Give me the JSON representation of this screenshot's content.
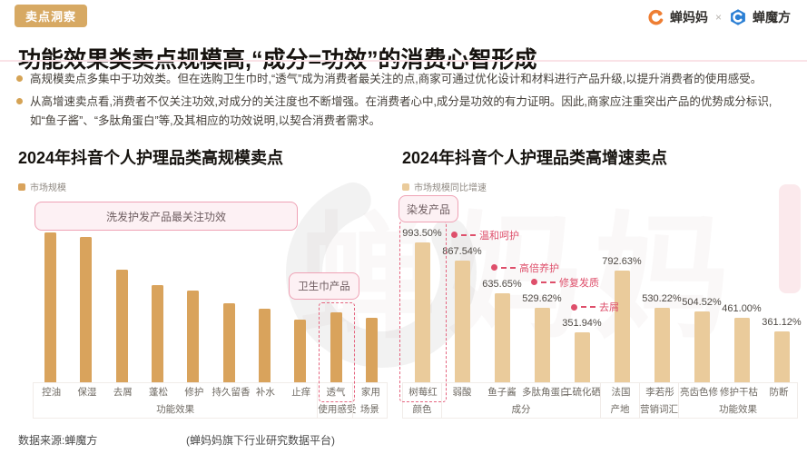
{
  "page": {
    "badge": "卖点洞察",
    "title": "功能效果类卖点规模高,“成分=功效”的消费心智形成",
    "brand": {
      "left_name": "蝉妈妈",
      "separator": "×",
      "right_name": "蝉魔方"
    },
    "bullets": [
      "高规模卖点多集中于功效类。但在选购卫生巾时,“透气”成为消费者最关注的点,商家可通过优化设计和材料进行产品升级,以提升消费者的使用感受。",
      "从高增速卖点看,消费者不仅关注功效,对成分的关注度也不断增强。在消费者心中,成分是功效的有力证明。因此,商家应注重突出产品的优势成分标识,如“鱼子酱”、“多肽角蛋白”等,及其相应的功效说明,以契合消费者需求。"
    ],
    "watermark": "蝉妈妈",
    "footer": {
      "source": "数据来源:蝉魔方",
      "platform": "(蝉妈妈旗下行业研究数据平台)"
    },
    "colors": {
      "badge_bg": "#D7A963",
      "left_bar": "#D9A35C",
      "right_bar": "#EACB9B",
      "pink_dashed": "#E5647F",
      "annotation_red": "#DE4F6B",
      "callout_bg": "#FDF1F4",
      "callout_border": "#EFA2B5",
      "divider_pink": "#FAE3E7",
      "brand_orange": "#EE7E33",
      "brand_blue": "#2B7FD4"
    }
  },
  "chart_data": [
    {
      "type": "bar",
      "title": "2024年抖音个人护理品类高规模卖点",
      "legend_label": "市场规模",
      "bar_color": "#D9A35C",
      "value_note": "no numeric axis shown in source; values are relative heights (max bar = 100)",
      "categories": [
        "控油",
        "保湿",
        "去屑",
        "蓬松",
        "修护",
        "持久留香",
        "补水",
        "止痒",
        "透气",
        "家用"
      ],
      "values": [
        100,
        97,
        75,
        65,
        61,
        53,
        49,
        42,
        47,
        43
      ],
      "groups": [
        {
          "label": "功能效果",
          "span": 8
        },
        {
          "label": "使用感受",
          "span": 1
        },
        {
          "label": "场景",
          "span": 1
        }
      ],
      "highlighted_bar": "透气",
      "callouts": [
        {
          "text": "洗发护发产品最关注功效"
        },
        {
          "text": "卫生巾产品"
        }
      ],
      "grid": false,
      "legend_position": "top-left"
    },
    {
      "type": "bar",
      "title": "2024年抖音个人护理品类高增速卖点",
      "legend_label": "市场规模同比增速",
      "bar_color": "#EACB9B",
      "categories": [
        "树莓红",
        "弱酸",
        "鱼子酱",
        "多肽角蛋白",
        "二硫化硒",
        "法国",
        "李若彤",
        "亮齿色修",
        "修护干枯",
        "防断"
      ],
      "values": [
        993.5,
        867.54,
        635.65,
        529.62,
        351.94,
        792.63,
        530.22,
        504.52,
        461.0,
        361.12
      ],
      "value_labels": [
        "993.50%",
        "867.54%",
        "635.65%",
        "529.62%",
        "351.94%",
        "792.63%",
        "530.22%",
        "504.52%",
        "461.00%",
        "361.12%"
      ],
      "groups": [
        {
          "label": "颜色",
          "span": 1
        },
        {
          "label": "成分",
          "span": 4
        },
        {
          "label": "产地",
          "span": 1
        },
        {
          "label": "营销词汇",
          "span": 1
        },
        {
          "label": "功能效果",
          "span": 3
        }
      ],
      "highlighted_bar": "树莓红",
      "annotations": [
        {
          "bar": "弱酸",
          "text": "温和呵护"
        },
        {
          "bar": "鱼子酱",
          "text": "高倍养护"
        },
        {
          "bar": "多肽角蛋白",
          "text": "修复发质"
        },
        {
          "bar": "二硫化硒",
          "text": "去屑"
        }
      ],
      "callouts": [
        {
          "text": "染发产品"
        }
      ],
      "grid": false,
      "legend_position": "top-left"
    }
  ]
}
